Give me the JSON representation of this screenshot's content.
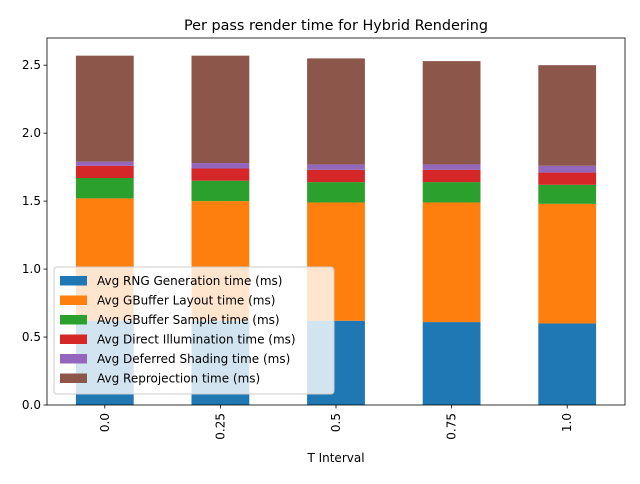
{
  "chart_data": {
    "type": "bar",
    "stacked": true,
    "title": "Per pass render time for Hybrid Rendering",
    "xlabel": "T Interval",
    "ylabel": "",
    "categories": [
      "0.0",
      "0.25",
      "0.5",
      "0.75",
      "1.0"
    ],
    "ylim": [
      0,
      2.7
    ],
    "yticks": [
      "0.0",
      "0.5",
      "1.0",
      "1.5",
      "2.0",
      "2.5"
    ],
    "grid": false,
    "legend_position": "lower-left",
    "series": [
      {
        "name": "Avg RNG Generation time (ms)",
        "color": "#1f77b4",
        "values": [
          0.62,
          0.62,
          0.62,
          0.61,
          0.6
        ]
      },
      {
        "name": "Avg GBuffer Layout time (ms)",
        "color": "#ff7f0e",
        "values": [
          0.9,
          0.88,
          0.87,
          0.88,
          0.88
        ]
      },
      {
        "name": "Avg GBuffer Sample time (ms)",
        "color": "#2ca02c",
        "values": [
          0.15,
          0.15,
          0.15,
          0.15,
          0.14
        ]
      },
      {
        "name": "Avg Direct Illumination time (ms)",
        "color": "#d62728",
        "values": [
          0.09,
          0.09,
          0.09,
          0.09,
          0.09
        ]
      },
      {
        "name": "Avg Deferred Shading time (ms)",
        "color": "#9467bd",
        "values": [
          0.03,
          0.04,
          0.04,
          0.04,
          0.05
        ]
      },
      {
        "name": "Avg Reprojection time (ms)",
        "color": "#8c564b",
        "values": [
          0.78,
          0.79,
          0.78,
          0.76,
          0.74
        ]
      }
    ]
  }
}
